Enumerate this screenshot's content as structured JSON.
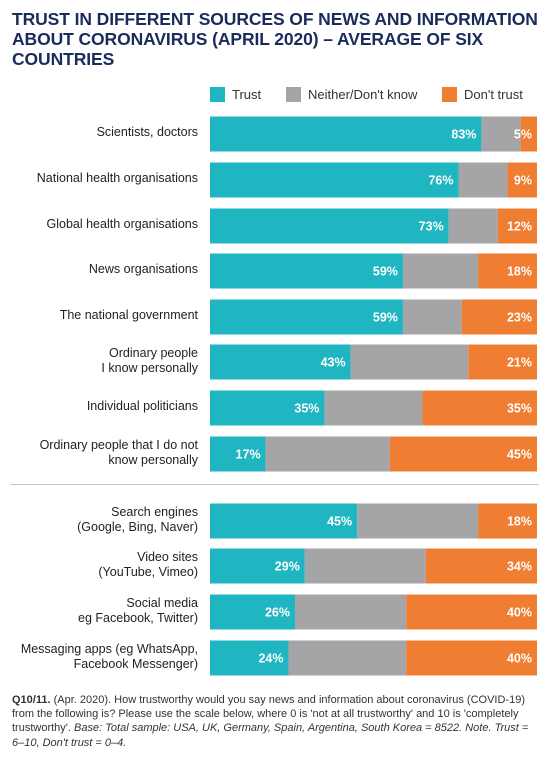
{
  "title": "TRUST IN DIFFERENT SOURCES OF NEWS AND INFORMATION ABOUT CORONAVIRUS (APRIL 2020) – AVERAGE OF SIX COUNTRIES",
  "legend": [
    {
      "label": "Trust",
      "color": "#1fb5c1"
    },
    {
      "label": "Neither/Don't know",
      "color": "#a5a5a8"
    },
    {
      "label": "Don't trust",
      "color": "#ef7d32"
    }
  ],
  "footnote": {
    "ref": "Q10/11.",
    "plain": " (Apr. 2020). How trustworthy would you say news and information about coronavirus (COVID-19) from the following is? Please use the scale below, where 0 is 'not at all trustworthy' and 10 is 'completely trustworthy'. ",
    "italic": "Base: Total sample: USA, UK, Germany, Spain, Argentina, South Korea = 8522. Note. Trust = 6–10, Don't trust = 0–4."
  },
  "chart_data": {
    "type": "bar",
    "orientation": "horizontal",
    "stacked": true,
    "xlim": [
      0,
      100
    ],
    "grid": false,
    "legend_position": "top-right",
    "groups": [
      [
        "Scientists, doctors",
        "National health organisations",
        "Global health organisations",
        "News organisations",
        "The national government",
        "Ordinary people\nI know personally",
        "Individual politicians",
        "Ordinary people that I do not\nknow personally"
      ],
      [
        "Search engines\n(Google, Bing, Naver)",
        "Video sites\n(YouTube, Vimeo)",
        "Social media\neg Facebook, Twitter)",
        "Messaging apps (eg WhatsApp,\nFacebook Messenger)"
      ]
    ],
    "categories": [
      "Scientists, doctors",
      "National health organisations",
      "Global health organisations",
      "News organisations",
      "The national government",
      "Ordinary people\nI know personally",
      "Individual politicians",
      "Ordinary people that I do not\nknow personally",
      "Search engines\n(Google, Bing, Naver)",
      "Video sites\n(YouTube, Vimeo)",
      "Social media\neg Facebook, Twitter)",
      "Messaging apps (eg WhatsApp,\nFacebook Messenger)"
    ],
    "series": [
      {
        "name": "Trust",
        "color": "#1fb5c1",
        "values": [
          83,
          76,
          73,
          59,
          59,
          43,
          35,
          17,
          45,
          29,
          26,
          24
        ]
      },
      {
        "name": "Neither/Don't know",
        "color": "#a5a5a8",
        "values": [
          12,
          15,
          15,
          23,
          18,
          36,
          30,
          38,
          37,
          37,
          34,
          36
        ]
      },
      {
        "name": "Don't trust",
        "color": "#ef7d32",
        "values": [
          5,
          9,
          12,
          18,
          23,
          21,
          35,
          45,
          18,
          34,
          40,
          40
        ]
      }
    ],
    "value_labels_shown_for": [
      "Trust",
      "Don't trust"
    ]
  }
}
